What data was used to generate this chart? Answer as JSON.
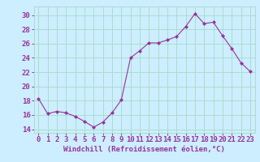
{
  "x": [
    0,
    1,
    2,
    3,
    4,
    5,
    6,
    7,
    8,
    9,
    10,
    11,
    12,
    13,
    14,
    15,
    16,
    17,
    18,
    19,
    20,
    21,
    22,
    23
  ],
  "y": [
    18.3,
    16.2,
    16.5,
    16.3,
    15.8,
    15.1,
    14.3,
    15.0,
    16.3,
    18.1,
    24.0,
    25.0,
    26.1,
    26.1,
    26.5,
    27.0,
    28.4,
    30.2,
    28.8,
    29.0,
    27.1,
    25.3,
    23.3,
    22.1
  ],
  "line_color": "#993399",
  "marker_color": "#993399",
  "bg_color": "#cceeff",
  "grid_color": "#aaddcc",
  "xlabel": "Windchill (Refroidissement éolien,°C)",
  "xlabel_color": "#993399",
  "tick_color": "#993399",
  "ylabel_vals": [
    14,
    16,
    18,
    20,
    22,
    24,
    26,
    28,
    30
  ],
  "ylim": [
    13.5,
    31.2
  ],
  "xlim": [
    -0.5,
    23.5
  ],
  "font_size": 6.5
}
